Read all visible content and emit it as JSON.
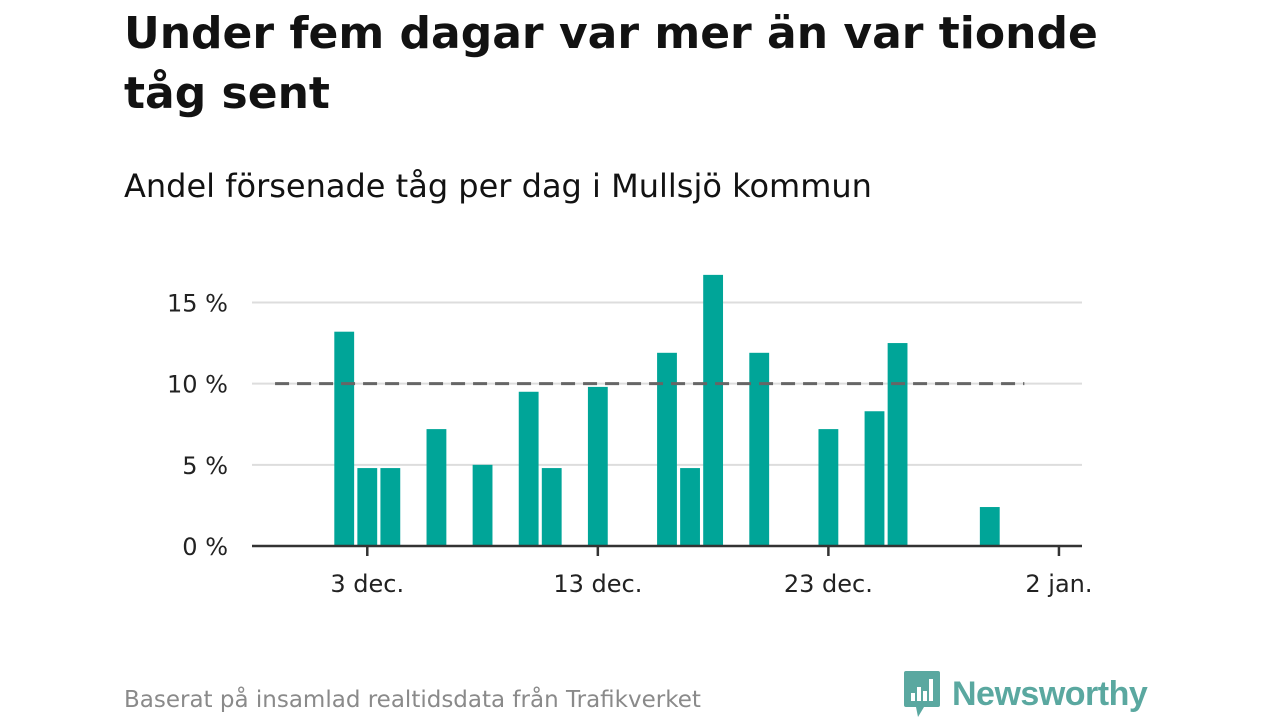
{
  "title": "Under fem dagar var mer än var tionde tåg sent",
  "subtitle": "Andel försenade tåg per dag i Mullsjö kommun",
  "source": "Baserat på insamlad realtidsdata från Trafikverket",
  "brand": {
    "name": "Newsworthy",
    "icon": "newsworthy-logo-icon",
    "color": "#5aa8a0"
  },
  "colors": {
    "bar": "#00a598",
    "reference": "#666666",
    "grid": "#dddddd",
    "axis": "#333333"
  },
  "chart_data": {
    "type": "bar",
    "x_type": "date",
    "x_range": [
      "2024-11-28",
      "2025-01-03"
    ],
    "ylim": [
      0,
      17
    ],
    "y_ticks": [
      {
        "value": 0,
        "label": "0 %"
      },
      {
        "value": 5,
        "label": "5 %"
      },
      {
        "value": 10,
        "label": "10 %"
      },
      {
        "value": 15,
        "label": "15 %"
      }
    ],
    "x_ticks": [
      {
        "date": "2024-12-03",
        "label": "3 dec."
      },
      {
        "date": "2024-12-13",
        "label": "13 dec."
      },
      {
        "date": "2024-12-23",
        "label": "23 dec."
      },
      {
        "date": "2025-01-02",
        "label": "2 jan."
      }
    ],
    "grid": true,
    "reference_line": {
      "value": 10,
      "from": "2024-11-29",
      "to": "2024-12-31",
      "style": "dashed"
    },
    "bars": [
      {
        "date": "2024-12-02",
        "value": 13.2
      },
      {
        "date": "2024-12-03",
        "value": 4.8
      },
      {
        "date": "2024-12-04",
        "value": 4.8
      },
      {
        "date": "2024-12-06",
        "value": 7.2
      },
      {
        "date": "2024-12-08",
        "value": 5.0
      },
      {
        "date": "2024-12-10",
        "value": 9.5
      },
      {
        "date": "2024-12-11",
        "value": 4.8
      },
      {
        "date": "2024-12-13",
        "value": 9.8
      },
      {
        "date": "2024-12-16",
        "value": 11.9
      },
      {
        "date": "2024-12-17",
        "value": 4.8
      },
      {
        "date": "2024-12-18",
        "value": 16.7
      },
      {
        "date": "2024-12-20",
        "value": 11.9
      },
      {
        "date": "2024-12-23",
        "value": 7.2
      },
      {
        "date": "2024-12-25",
        "value": 8.3
      },
      {
        "date": "2024-12-26",
        "value": 12.5
      },
      {
        "date": "2024-12-30",
        "value": 2.4
      }
    ]
  }
}
